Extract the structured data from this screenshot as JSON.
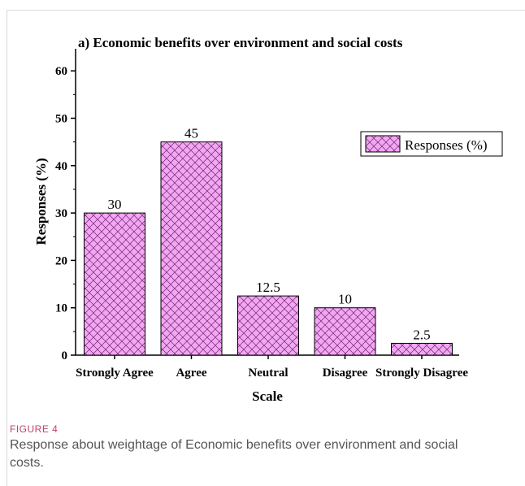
{
  "chart_data": {
    "type": "bar",
    "title": "a) Economic benefits over environment and social costs",
    "xlabel": "Scale",
    "ylabel": "Responses (%)",
    "categories": [
      "Strongly Agree",
      "Agree",
      "Neutral",
      "Disagree",
      "Strongly Disagree"
    ],
    "series": [
      {
        "name": "Responses (%)",
        "values": [
          30,
          45,
          12.5,
          10,
          2.5
        ]
      }
    ],
    "data_labels": [
      "30",
      "45",
      "12.5",
      "10",
      "2.5"
    ],
    "ylim": [
      0,
      65
    ],
    "yticks": [
      0,
      10,
      20,
      30,
      40,
      50,
      60
    ],
    "grid": false,
    "legend_position": "top-right",
    "bar_fill": "#f0a8f0",
    "hatch_color": "#7a1f7a",
    "bar_pattern": "crosshatch"
  },
  "figure": {
    "label": "FIGURE 4",
    "caption": "Response about weightage of Economic benefits over environment and social costs.",
    "label_color": "#c0406a"
  }
}
